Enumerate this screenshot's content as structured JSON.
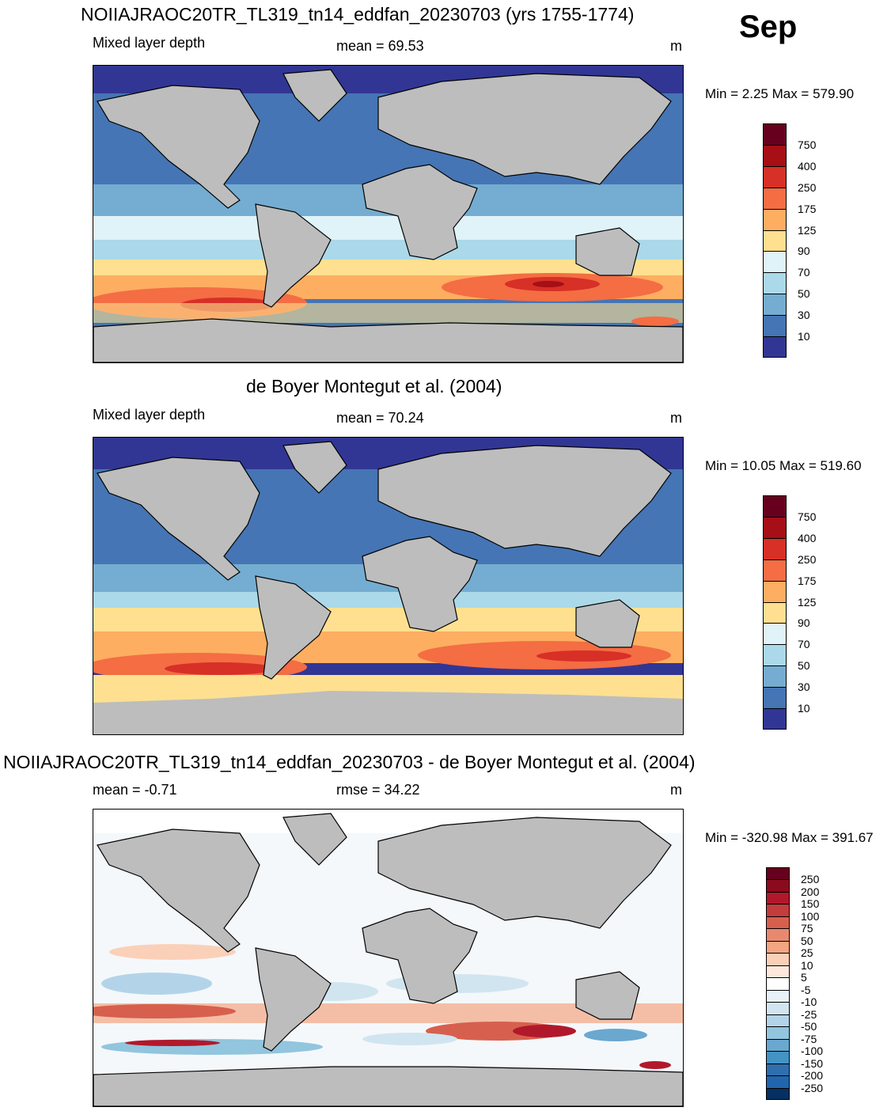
{
  "month": "Sep",
  "panels": [
    {
      "title": "NOIIAJRAOC20TR_TL319_tn14_eddfan_20230703 (yrs 1755-1774)",
      "left_label": "Mixed layer depth",
      "center_label": "mean =  69.53",
      "units": "m",
      "minmax": "Min =   2.25 Max = 579.90",
      "colorbar": {
        "labels": [
          "750",
          "400",
          "250",
          "175",
          "125",
          "90",
          "70",
          "50",
          "30",
          "10"
        ],
        "colors": [
          "#67001f",
          "#a50f15",
          "#d73027",
          "#f46d43",
          "#fdae61",
          "#fee090",
          "#e0f3f8",
          "#abd9e9",
          "#74add1",
          "#4575b4",
          "#313695"
        ]
      }
    },
    {
      "title": "de Boyer Montegut et al. (2004)",
      "left_label": "Mixed layer depth",
      "center_label": "mean =  70.24",
      "units": "m",
      "minmax": "Min =  10.05 Max = 519.60",
      "colorbar": {
        "labels": [
          "750",
          "400",
          "250",
          "175",
          "125",
          "90",
          "70",
          "50",
          "30",
          "10"
        ],
        "colors": [
          "#67001f",
          "#a50f15",
          "#d73027",
          "#f46d43",
          "#fdae61",
          "#fee090",
          "#e0f3f8",
          "#abd9e9",
          "#74add1",
          "#4575b4",
          "#313695"
        ]
      }
    },
    {
      "title": "NOIIAJRAOC20TR_TL319_tn14_eddfan_20230703 - de Boyer Montegut et al. (2004)",
      "left_label": "mean =  -0.71",
      "center_label": "rmse =  34.22",
      "units": "m",
      "minmax": "Min = -320.98 Max = 391.67",
      "colorbar": {
        "labels": [
          "250",
          "200",
          "150",
          "100",
          "75",
          "50",
          "25",
          "10",
          "5",
          "-5",
          "-10",
          "-25",
          "-50",
          "-75",
          "-100",
          "-150",
          "-200",
          "-250"
        ],
        "colors": [
          "#67001f",
          "#8b0a1e",
          "#b2182b",
          "#c43c3c",
          "#d6604d",
          "#e8896f",
          "#f4a582",
          "#fbd0b9",
          "#fde8dc",
          "#ffffff",
          "#e8f1f7",
          "#d1e5f0",
          "#b3d4e8",
          "#92c5de",
          "#6aa8cf",
          "#4393c3",
          "#2f6fae",
          "#2166ac",
          "#053061"
        ]
      }
    }
  ]
}
